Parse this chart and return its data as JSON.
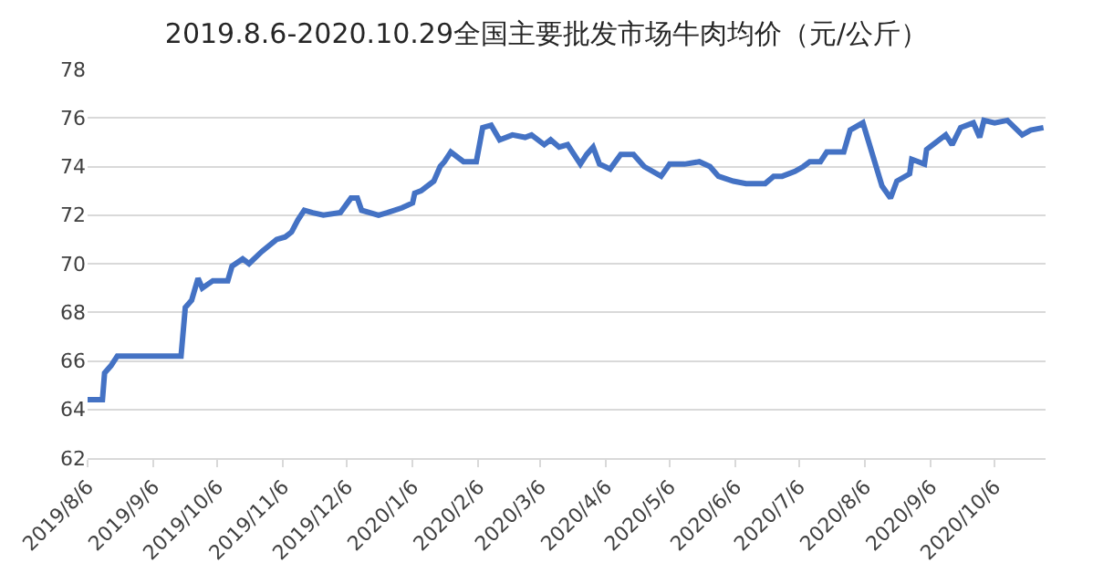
{
  "chart_data": {
    "type": "line",
    "title": "2019.8.6-2020.10.29全国主要批发市场牛肉均价（元/公斤）",
    "x": [
      "2019-08-06",
      "2019-08-13",
      "2019-08-14",
      "2019-08-17",
      "2019-08-20",
      "2019-09-19",
      "2019-09-21",
      "2019-09-24",
      "2019-09-27",
      "2019-09-29",
      "2019-10-04",
      "2019-10-11",
      "2019-10-13",
      "2019-10-18",
      "2019-10-21",
      "2019-10-27",
      "2019-11-03",
      "2019-11-07",
      "2019-11-10",
      "2019-11-13",
      "2019-11-16",
      "2019-11-20",
      "2019-11-25",
      "2019-12-03",
      "2019-12-08",
      "2019-12-11",
      "2019-12-13",
      "2019-12-21",
      "2019-12-25",
      "2020-01-01",
      "2020-01-06",
      "2020-01-07",
      "2020-01-10",
      "2020-01-16",
      "2020-01-19",
      "2020-01-21",
      "2020-01-24",
      "2020-01-30",
      "2020-02-05",
      "2020-02-08",
      "2020-02-12",
      "2020-02-16",
      "2020-02-22",
      "2020-02-28",
      "2020-03-02",
      "2020-03-08",
      "2020-03-11",
      "2020-03-15",
      "2020-03-19",
      "2020-03-25",
      "2020-03-28",
      "2020-03-31",
      "2020-04-03",
      "2020-04-08",
      "2020-04-13",
      "2020-04-19",
      "2020-04-24",
      "2020-05-02",
      "2020-05-06",
      "2020-05-13",
      "2020-05-20",
      "2020-05-25",
      "2020-05-29",
      "2020-06-05",
      "2020-06-11",
      "2020-06-20",
      "2020-06-24",
      "2020-06-28",
      "2020-07-04",
      "2020-07-08",
      "2020-07-11",
      "2020-07-16",
      "2020-07-19",
      "2020-07-27",
      "2020-07-30",
      "2020-08-05",
      "2020-08-14",
      "2020-08-18",
      "2020-08-21",
      "2020-08-27",
      "2020-08-28",
      "2020-09-03",
      "2020-09-04",
      "2020-09-10",
      "2020-09-13",
      "2020-09-16",
      "2020-09-20",
      "2020-09-26",
      "2020-09-29",
      "2020-10-01",
      "2020-10-06",
      "2020-10-12",
      "2020-10-19",
      "2020-10-23",
      "2020-10-29"
    ],
    "series": [
      {
        "color": "#4472c4",
        "values": [
          64.4,
          64.4,
          65.5,
          65.8,
          66.2,
          66.2,
          68.2,
          68.5,
          69.4,
          69.0,
          69.3,
          69.3,
          69.9,
          70.2,
          70.0,
          70.5,
          71.0,
          71.1,
          71.3,
          71.8,
          72.2,
          72.1,
          72.0,
          72.1,
          72.7,
          72.7,
          72.2,
          72.0,
          72.1,
          72.3,
          72.5,
          72.9,
          73.0,
          73.4,
          74.0,
          74.2,
          74.6,
          74.2,
          74.2,
          75.6,
          75.7,
          75.1,
          75.3,
          75.2,
          75.3,
          74.9,
          75.1,
          74.8,
          74.9,
          74.1,
          74.5,
          74.8,
          74.1,
          73.9,
          74.5,
          74.5,
          74.0,
          73.6,
          74.1,
          74.1,
          74.2,
          74.0,
          73.6,
          73.4,
          73.3,
          73.3,
          73.6,
          73.6,
          73.8,
          74.0,
          74.2,
          74.2,
          74.6,
          74.6,
          75.5,
          75.8,
          73.2,
          72.7,
          73.4,
          73.7,
          74.3,
          74.1,
          74.7,
          75.1,
          75.3,
          74.9,
          75.6,
          75.8,
          75.2,
          75.9,
          75.8,
          75.9,
          75.3,
          75.5,
          75.6
        ]
      }
    ],
    "xlim": [
      "2019-08-06",
      "2020-10-30"
    ],
    "xticks": [
      {
        "value": "2019-08-06",
        "label": "2019/8/6"
      },
      {
        "value": "2019-09-06",
        "label": "2019/9/6"
      },
      {
        "value": "2019-10-06",
        "label": "2019/10/6"
      },
      {
        "value": "2019-11-06",
        "label": "2019/11/6"
      },
      {
        "value": "2019-12-06",
        "label": "2019/12/6"
      },
      {
        "value": "2020-01-06",
        "label": "2020/1/6"
      },
      {
        "value": "2020-02-06",
        "label": "2020/2/6"
      },
      {
        "value": "2020-03-06",
        "label": "2020/3/6"
      },
      {
        "value": "2020-04-06",
        "label": "2020/4/6"
      },
      {
        "value": "2020-05-06",
        "label": "2020/5/6"
      },
      {
        "value": "2020-06-06",
        "label": "2020/6/6"
      },
      {
        "value": "2020-07-06",
        "label": "2020/7/6"
      },
      {
        "value": "2020-08-06",
        "label": "2020/8/6"
      },
      {
        "value": "2020-09-06",
        "label": "2020/9/6"
      },
      {
        "value": "2020-10-06",
        "label": "2020/10/6"
      }
    ],
    "ylim": [
      62,
      78
    ],
    "yticks": [
      62,
      64,
      66,
      68,
      70,
      72,
      74,
      76,
      78
    ],
    "grid": "y",
    "marker": "none",
    "line_style": "solid"
  }
}
